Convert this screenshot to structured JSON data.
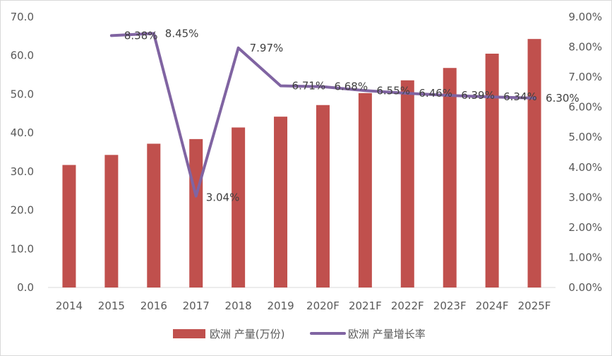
{
  "chart_data": {
    "type": "bar",
    "categories": [
      "2014",
      "2015",
      "2016",
      "2017",
      "2018",
      "2019",
      "2020F",
      "2021F",
      "2022F",
      "2023F",
      "2024F",
      "2025F"
    ],
    "series": [
      {
        "name": "欧洲 产量(万份)",
        "type": "bar",
        "axis": "left",
        "color": "#c0504d",
        "values": [
          31.7,
          34.3,
          37.2,
          38.4,
          41.4,
          44.2,
          47.2,
          50.3,
          53.6,
          56.8,
          60.5,
          64.3
        ]
      },
      {
        "name": "欧洲 产量增长率",
        "type": "line",
        "axis": "right",
        "color": "#8064a2",
        "values": [
          null,
          8.38,
          8.45,
          3.04,
          7.97,
          6.71,
          6.68,
          6.55,
          6.46,
          6.39,
          6.34,
          6.3
        ],
        "labels": [
          null,
          "8.38%",
          "8.45%",
          "3.04%",
          "7.97%",
          "6.71%",
          "6.68%",
          "6.55%",
          "6.46%",
          "6.39%",
          "6.34%",
          "6.30%"
        ]
      }
    ],
    "left_axis": {
      "ylim": [
        0,
        70
      ],
      "ticks": [
        "0.0",
        "10.0",
        "20.0",
        "30.0",
        "40.0",
        "50.0",
        "60.0",
        "70.0"
      ]
    },
    "right_axis": {
      "ylim": [
        0,
        9
      ],
      "ticks": [
        "0.00%",
        "1.00%",
        "2.00%",
        "3.00%",
        "4.00%",
        "5.00%",
        "6.00%",
        "7.00%",
        "8.00%",
        "9.00%"
      ]
    },
    "grid": false,
    "legend_position": "bottom",
    "title": "",
    "xlabel": "",
    "ylabel": ""
  }
}
